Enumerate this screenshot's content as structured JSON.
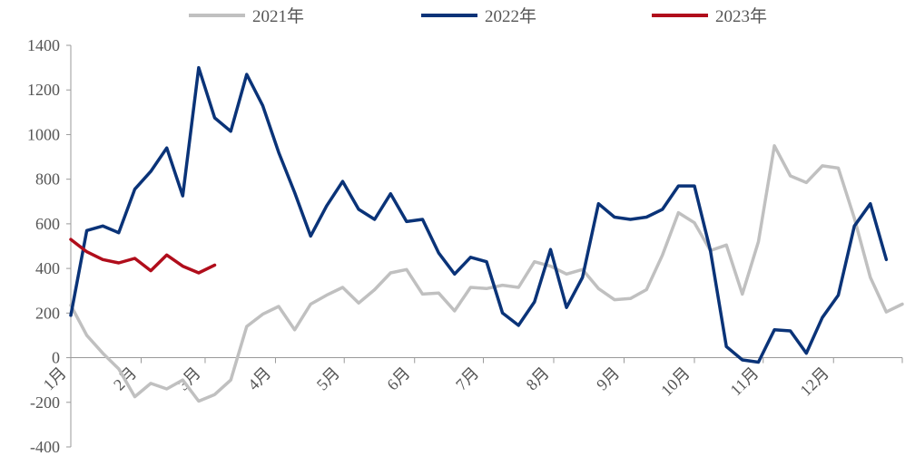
{
  "chart_data": {
    "type": "line",
    "title": "",
    "xlabel": "",
    "ylabel": "",
    "ylim": [
      -400,
      1400
    ],
    "yticks": [
      -400,
      -200,
      0,
      200,
      400,
      600,
      800,
      1000,
      1200,
      1400
    ],
    "xlim": [
      0,
      52
    ],
    "xticks": [
      {
        "label": "1月",
        "x": 0
      },
      {
        "label": "2月",
        "x": 4.4
      },
      {
        "label": "3月",
        "x": 8.4
      },
      {
        "label": "4月",
        "x": 12.8
      },
      {
        "label": "5月",
        "x": 17.1
      },
      {
        "label": "6月",
        "x": 21.5
      },
      {
        "label": "7月",
        "x": 25.8
      },
      {
        "label": "8月",
        "x": 30.2
      },
      {
        "label": "9月",
        "x": 34.6
      },
      {
        "label": "10月",
        "x": 39
      },
      {
        "label": "11月",
        "x": 43.3
      },
      {
        "label": "12月",
        "x": 47.7
      }
    ],
    "grid": false,
    "legend_position": "top",
    "series": [
      {
        "name": "2021年",
        "color": "#c0c0c0",
        "x": [
          0,
          1,
          2,
          3,
          4,
          5,
          6,
          7,
          8,
          9,
          10,
          11,
          12,
          13,
          14,
          15,
          16,
          17,
          18,
          19,
          20,
          21,
          22,
          23,
          24,
          25,
          26,
          27,
          28,
          29,
          30,
          31,
          32,
          33,
          34,
          35,
          36,
          37,
          38,
          39,
          40,
          41,
          42,
          43,
          44,
          45,
          46,
          47,
          48,
          49,
          50,
          51,
          52
        ],
        "values": [
          235,
          100,
          20,
          -50,
          -175,
          -115,
          -140,
          -100,
          -195,
          -165,
          -100,
          140,
          195,
          230,
          125,
          240,
          280,
          315,
          245,
          305,
          380,
          395,
          285,
          290,
          210,
          315,
          310,
          325,
          315,
          430,
          410,
          375,
          395,
          310,
          260,
          265,
          305,
          460,
          650,
          605,
          480,
          505,
          285,
          520,
          950,
          815,
          785,
          860,
          850,
          625,
          360,
          205,
          240
        ]
      },
      {
        "name": "2022年",
        "color": "#0a3378",
        "x": [
          0,
          1,
          2,
          3,
          4,
          5,
          6,
          7,
          8,
          9,
          10,
          11,
          12,
          13,
          14,
          15,
          16,
          17,
          18,
          19,
          20,
          21,
          22,
          23,
          24,
          25,
          26,
          27,
          28,
          29,
          30,
          31,
          32,
          33,
          34,
          35,
          36,
          37,
          38,
          39,
          40,
          41,
          42,
          43,
          44,
          45,
          46,
          47,
          48,
          49,
          50,
          51
        ],
        "values": [
          190,
          570,
          590,
          560,
          755,
          835,
          940,
          725,
          1300,
          1075,
          1015,
          1270,
          1130,
          920,
          740,
          545,
          680,
          790,
          665,
          620,
          735,
          610,
          620,
          470,
          375,
          450,
          430,
          200,
          145,
          250,
          485,
          225,
          360,
          690,
          630,
          620,
          630,
          665,
          770,
          770,
          480,
          50,
          -10,
          -20,
          125,
          120,
          20,
          180,
          280,
          590,
          690,
          440
        ]
      },
      {
        "name": "2023年",
        "color": "#b00d1b",
        "x": [
          0,
          1,
          2,
          3,
          4,
          5,
          6,
          7,
          8,
          9
        ],
        "values": [
          530,
          475,
          440,
          425,
          445,
          390,
          460,
          410,
          380,
          415
        ]
      }
    ]
  }
}
